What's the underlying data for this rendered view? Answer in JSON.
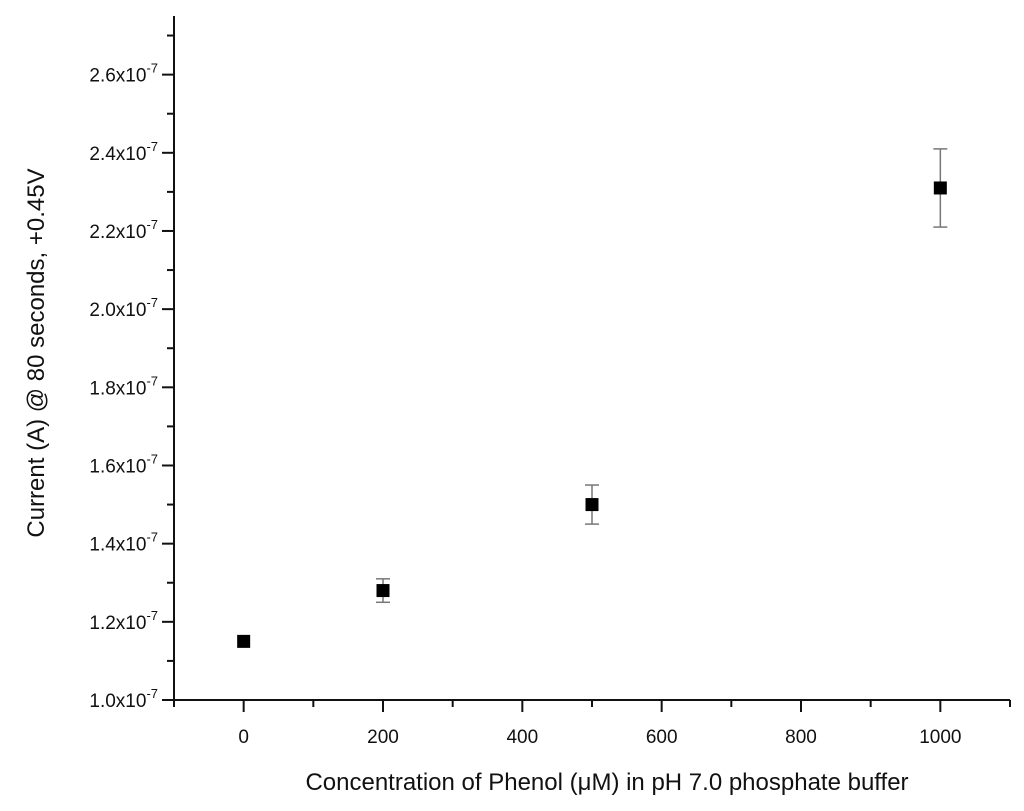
{
  "chart_data": {
    "type": "scatter",
    "xlabel": "Concentration of Phenol (μM) in pH 7.0 phosphate buffer",
    "ylabel": "Current (A) @ 80 seconds, +0.45V",
    "xlim": [
      -100,
      1100
    ],
    "ylim": [
      1e-07,
      2.75e-07
    ],
    "x_ticks": [
      0,
      200,
      400,
      600,
      800,
      1000
    ],
    "x_tick_labels": [
      "0",
      "200",
      "400",
      "600",
      "800",
      "1000"
    ],
    "y_ticks": [
      1e-07,
      1.2e-07,
      1.4e-07,
      1.6e-07,
      1.8e-07,
      2e-07,
      2.2e-07,
      2.4e-07,
      2.6e-07
    ],
    "y_tick_labels": [
      {
        "mantissa": "1.0x10",
        "exp": "-7"
      },
      {
        "mantissa": "1.2x10",
        "exp": "-7"
      },
      {
        "mantissa": "1.4x10",
        "exp": "-7"
      },
      {
        "mantissa": "1.6x10",
        "exp": "-7"
      },
      {
        "mantissa": "1.8x10",
        "exp": "-7"
      },
      {
        "mantissa": "2.0x10",
        "exp": "-7"
      },
      {
        "mantissa": "2.2x10",
        "exp": "-7"
      },
      {
        "mantissa": "2.4x10",
        "exp": "-7"
      },
      {
        "mantissa": "2.6x10",
        "exp": "-7"
      }
    ],
    "grid": false,
    "series": [
      {
        "marker": "square",
        "color": "#000000",
        "points": [
          {
            "x": 0,
            "y": 1.15e-07,
            "err": 0.0
          },
          {
            "x": 200,
            "y": 1.28e-07,
            "err": 3e-09
          },
          {
            "x": 500,
            "y": 1.5e-07,
            "err": 5e-09
          },
          {
            "x": 1000,
            "y": 2.31e-07,
            "err": 1e-08
          }
        ]
      }
    ]
  }
}
